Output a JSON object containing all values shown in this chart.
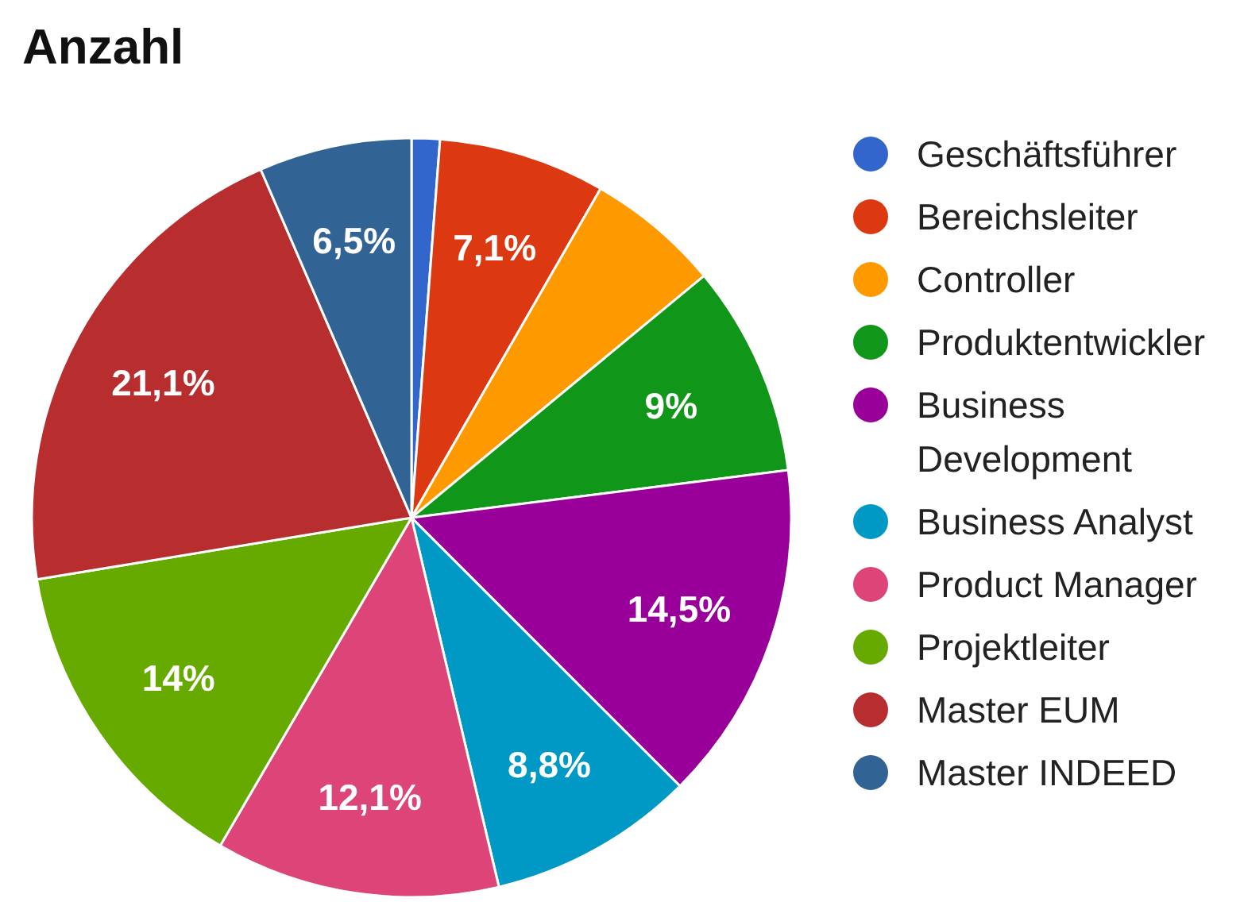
{
  "chart_data": {
    "type": "pie",
    "title": "Anzahl",
    "categories": [
      "Geschäftsführer",
      "Bereichsleiter",
      "Controller",
      "Produktentwickler",
      "Business Development",
      "Business Analyst",
      "Product Manager",
      "Projektleiter",
      "Master EUM",
      "Master INDEED"
    ],
    "values": [
      1.2,
      7.1,
      5.7,
      9,
      14.5,
      8.8,
      12.1,
      14,
      21.1,
      6.5
    ],
    "colors": [
      "#3366cc",
      "#dc3912",
      "#ff9900",
      "#109618",
      "#990099",
      "#0099c6",
      "#dd4477",
      "#66aa00",
      "#b82e2e",
      "#316395"
    ],
    "value_labels": [
      null,
      "7,1%",
      null,
      "9%",
      "14,5%",
      "8,8%",
      "12,1%",
      "14%",
      "21,1%",
      "6,5%"
    ],
    "legend": "right"
  }
}
